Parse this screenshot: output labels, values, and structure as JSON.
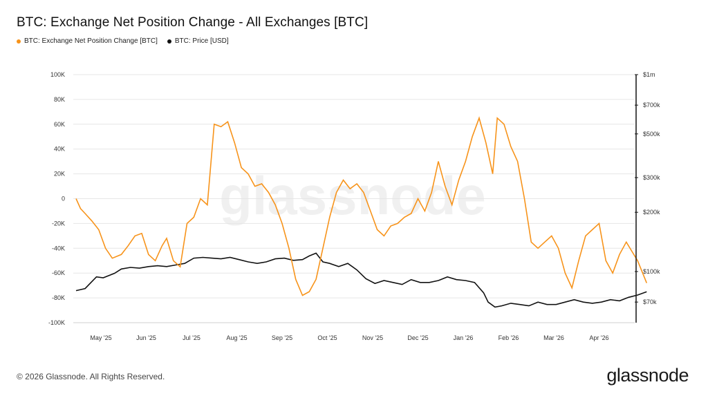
{
  "title": "BTC: Exchange Net Position Change - All Exchanges [BTC]",
  "legend": [
    {
      "label": "BTC: Exchange Net Position Change [BTC]",
      "color": "#f7931a"
    },
    {
      "label": "BTC: Price [USD]",
      "color": "#111111"
    }
  ],
  "watermark": "glassnode",
  "footer": "© 2026 Glassnode. All Rights Reserved.",
  "logo": "glassnode",
  "chart_data": {
    "type": "line",
    "x_tick_labels": [
      "May '25",
      "Jun '25",
      "Jul '25",
      "Aug '25",
      "Sep '25",
      "Oct '25",
      "Nov '25",
      "Dec '25",
      "Jan '26",
      "Feb '26",
      "Mar '26",
      "Apr '26"
    ],
    "left_axis": {
      "ticks": [
        100000,
        80000,
        60000,
        40000,
        20000,
        0,
        -20000,
        -40000,
        -60000,
        -80000,
        -100000
      ],
      "tick_labels": [
        "100K",
        "80K",
        "60K",
        "40K",
        "20K",
        "0",
        "-20K",
        "-40K",
        "-60K",
        "-80K",
        "-100K"
      ],
      "ylim": [
        -100000,
        100000
      ]
    },
    "right_axis": {
      "scale": "log",
      "ticks": [
        1000000,
        700000,
        500000,
        300000,
        200000,
        100000,
        70000
      ],
      "tick_labels": [
        "$1m",
        "$700k",
        "$500k",
        "$300k",
        "$200k",
        "$100k",
        "$70k"
      ],
      "ylim": [
        55000,
        1000000
      ]
    },
    "grid": true,
    "series": [
      {
        "name": "BTC: Exchange Net Position Change [BTC]",
        "axis": "left",
        "color": "#f7931a",
        "x_month": [
          0.0,
          0.1,
          0.2,
          0.35,
          0.5,
          0.65,
          0.8,
          1.0,
          1.15,
          1.3,
          1.45,
          1.6,
          1.75,
          1.9,
          2.0,
          2.15,
          2.3,
          2.45,
          2.6,
          2.75,
          2.9,
          3.05,
          3.2,
          3.35,
          3.5,
          3.65,
          3.8,
          3.95,
          4.1,
          4.25,
          4.4,
          4.55,
          4.7,
          4.85,
          5.0,
          5.15,
          5.3,
          5.45,
          5.6,
          5.75,
          5.9,
          6.05,
          6.2,
          6.35,
          6.5,
          6.65,
          6.8,
          6.95,
          7.1,
          7.25,
          7.4,
          7.55,
          7.7,
          7.85,
          8.0,
          8.15,
          8.3,
          8.45,
          8.6,
          8.75,
          8.9,
          9.05,
          9.2,
          9.3,
          9.45,
          9.6,
          9.75,
          9.9,
          10.05,
          10.2,
          10.35,
          10.5,
          10.65,
          10.8,
          10.95,
          11.1,
          11.25,
          11.4,
          11.55,
          11.7,
          11.85,
          12.0,
          12.15,
          12.4,
          12.6
        ],
        "values": [
          0,
          -8000,
          -12000,
          -18000,
          -25000,
          -40000,
          -48000,
          -45000,
          -38000,
          -30000,
          -28000,
          -45000,
          -50000,
          -38000,
          -32000,
          -50000,
          -55000,
          -20000,
          -15000,
          0,
          -5000,
          60000,
          58000,
          62000,
          45000,
          25000,
          20000,
          10000,
          12000,
          5000,
          -5000,
          -20000,
          -40000,
          -65000,
          -78000,
          -75000,
          -65000,
          -40000,
          -15000,
          5000,
          15000,
          8000,
          12000,
          5000,
          -10000,
          -25000,
          -30000,
          -22000,
          -20000,
          -15000,
          -12000,
          0,
          -10000,
          5000,
          30000,
          10000,
          -5000,
          15000,
          30000,
          50000,
          65000,
          45000,
          20000,
          65000,
          60000,
          42000,
          30000,
          0,
          -35000,
          -40000,
          -35000,
          -30000,
          -40000,
          -60000,
          -72000,
          -50000,
          -30000,
          -25000,
          -20000,
          -50000,
          -60000,
          -45000,
          -35000,
          -50000,
          -68000
        ],
        "notes": "Approximate reading of the orange series"
      },
      {
        "name": "BTC: Price [USD]",
        "axis": "right",
        "color": "#111111",
        "x_month": [
          0.0,
          0.2,
          0.45,
          0.6,
          0.85,
          1.0,
          1.2,
          1.4,
          1.6,
          1.8,
          2.0,
          2.2,
          2.4,
          2.6,
          2.8,
          3.0,
          3.2,
          3.4,
          3.6,
          3.8,
          4.0,
          4.2,
          4.4,
          4.6,
          4.8,
          5.0,
          5.15,
          5.3,
          5.45,
          5.6,
          5.8,
          6.0,
          6.2,
          6.4,
          6.6,
          6.8,
          7.0,
          7.2,
          7.4,
          7.6,
          7.8,
          8.0,
          8.2,
          8.4,
          8.6,
          8.8,
          9.0,
          9.1,
          9.25,
          9.4,
          9.6,
          9.8,
          10.0,
          10.2,
          10.4,
          10.6,
          10.8,
          11.0,
          11.2,
          11.4,
          11.6,
          11.8,
          12.0,
          12.2,
          12.4,
          12.6
        ],
        "values": [
          80000,
          82000,
          94000,
          93000,
          98000,
          103000,
          105000,
          104000,
          106000,
          107000,
          106000,
          108000,
          110000,
          117000,
          118000,
          117000,
          116000,
          118000,
          115000,
          112000,
          110000,
          112000,
          116000,
          117000,
          114000,
          115000,
          120000,
          124000,
          112000,
          110000,
          106000,
          110000,
          102000,
          92000,
          87000,
          90000,
          88000,
          86000,
          91000,
          88000,
          88000,
          90000,
          94000,
          91000,
          90000,
          88000,
          78000,
          70000,
          66000,
          67000,
          69000,
          68000,
          67000,
          70000,
          68000,
          68000,
          70000,
          72000,
          70000,
          69000,
          70000,
          72000,
          71000,
          74000,
          76000,
          79000
        ],
        "notes": "Approximate reading of the black series (log right axis)"
      }
    ]
  }
}
